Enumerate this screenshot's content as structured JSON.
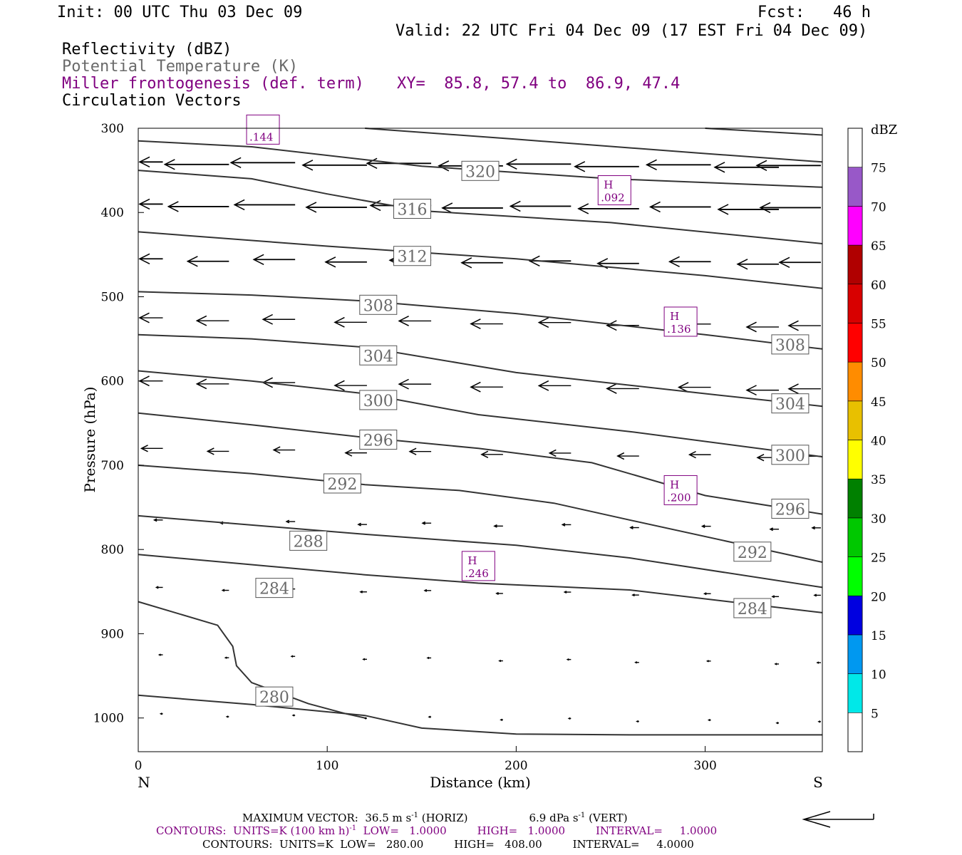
{
  "header": {
    "init": "Init: 00 UTC Thu 03 Dec 09",
    "fcst": "Fcst:   46 h",
    "valid": "Valid: 22 UTC Fri 04 Dec 09 (17 EST Fri 04 Dec 09)",
    "field1": "Reflectivity (dBZ)",
    "field2": "Potential Temperature (K)",
    "field3": "Miller frontogenesis (def. term)",
    "xy": "XY=  85.8, 57.4 to  86.9, 47.4",
    "field4": "Circulation Vectors"
  },
  "colors": {
    "purple": "#800080",
    "contour": "#333333",
    "theta_label_gray": "#6a6a6a"
  },
  "chart_data": {
    "type": "cross-section",
    "xlabel": "Distance (km)",
    "ylabel": "Pressure (hPa)",
    "xlim": [
      0,
      362
    ],
    "ylim": [
      1040,
      300
    ],
    "x_ticks": [
      0,
      100,
      200,
      300
    ],
    "y_ticks": [
      300,
      400,
      500,
      600,
      700,
      800,
      900,
      1000
    ],
    "left_end_label": "N",
    "right_end_label": "S",
    "theta_contours": [
      {
        "label": "280",
        "label_at": [
          72,
          975
        ],
        "points": [
          [
            0,
            862
          ],
          [
            42,
            890
          ],
          [
            50,
            915
          ],
          [
            52,
            938
          ],
          [
            60,
            958
          ],
          [
            90,
            983
          ],
          [
            110,
            995
          ],
          [
            120,
            1000
          ]
        ]
      },
      {
        "label": "",
        "label_at": null,
        "points": [
          [
            0,
            973
          ],
          [
            60,
            984
          ],
          [
            120,
            997
          ],
          [
            150,
            1012
          ],
          [
            200,
            1019
          ],
          [
            260,
            1020
          ],
          [
            362,
            1020
          ]
        ]
      },
      {
        "label": "284",
        "label_at": [
          72,
          846
        ],
        "points": [
          [
            0,
            806
          ],
          [
            60,
            818
          ],
          [
            120,
            830
          ],
          [
            180,
            840
          ],
          [
            260,
            848
          ],
          [
            362,
            875
          ]
        ]
      },
      {
        "label": "284",
        "label_at": [
          325,
          870
        ],
        "points": []
      },
      {
        "label": "288",
        "label_at": [
          90,
          790
        ],
        "points": [
          [
            0,
            760
          ],
          [
            60,
            771
          ],
          [
            120,
            782
          ],
          [
            200,
            795
          ],
          [
            260,
            810
          ],
          [
            362,
            845
          ]
        ]
      },
      {
        "label": "292",
        "label_at": [
          108,
          722
        ],
        "points": [
          [
            0,
            700
          ],
          [
            60,
            710
          ],
          [
            120,
            723
          ],
          [
            170,
            730
          ],
          [
            220,
            745
          ],
          [
            260,
            765
          ],
          [
            362,
            815
          ]
        ]
      },
      {
        "label": "292",
        "label_at": [
          325,
          803
        ],
        "points": []
      },
      {
        "label": "296",
        "label_at": [
          127,
          670
        ],
        "points": [
          [
            0,
            638
          ],
          [
            60,
            652
          ],
          [
            120,
            667
          ],
          [
            180,
            680
          ],
          [
            240,
            697
          ],
          [
            300,
            736
          ],
          [
            362,
            758
          ]
        ]
      },
      {
        "label": "296",
        "label_at": [
          345,
          752
        ],
        "points": []
      },
      {
        "label": "300",
        "label_at": [
          127,
          623
        ],
        "points": [
          [
            0,
            588
          ],
          [
            60,
            600
          ],
          [
            120,
            615
          ],
          [
            180,
            640
          ],
          [
            260,
            660
          ],
          [
            362,
            690
          ]
        ]
      },
      {
        "label": "300",
        "label_at": [
          345,
          688
        ],
        "points": []
      },
      {
        "label": "304",
        "label_at": [
          127,
          570
        ],
        "points": [
          [
            0,
            545
          ],
          [
            60,
            550
          ],
          [
            120,
            560
          ],
          [
            200,
            590
          ],
          [
            300,
            615
          ],
          [
            362,
            630
          ]
        ]
      },
      {
        "label": "304",
        "label_at": [
          345,
          627
        ],
        "points": []
      },
      {
        "label": "308",
        "label_at": [
          127,
          510
        ],
        "points": [
          [
            0,
            494
          ],
          [
            60,
            498
          ],
          [
            120,
            505
          ],
          [
            200,
            520
          ],
          [
            300,
            545
          ],
          [
            362,
            562
          ]
        ]
      },
      {
        "label": "308",
        "label_at": [
          345,
          557
        ],
        "points": []
      },
      {
        "label": "312",
        "label_at": [
          145,
          452
        ],
        "points": [
          [
            0,
            423
          ],
          [
            100,
            440
          ],
          [
            200,
            455
          ],
          [
            300,
            475
          ],
          [
            362,
            490
          ]
        ]
      },
      {
        "label": "316",
        "label_at": [
          145,
          396
        ],
        "points": [
          [
            0,
            350
          ],
          [
            60,
            360
          ],
          [
            100,
            378
          ],
          [
            150,
            398
          ],
          [
            250,
            412
          ],
          [
            362,
            437
          ]
        ]
      },
      {
        "label": "320",
        "label_at": [
          181,
          351
        ],
        "points": [
          [
            0,
            315
          ],
          [
            60,
            322
          ],
          [
            150,
            345
          ],
          [
            250,
            360
          ],
          [
            362,
            370
          ]
        ]
      },
      {
        "label": "",
        "label_at": null,
        "points": [
          [
            120,
            300
          ],
          [
            200,
            313
          ],
          [
            300,
            330
          ],
          [
            362,
            340
          ]
        ]
      },
      {
        "label": "",
        "label_at": null,
        "points": [
          [
            300,
            300
          ],
          [
            362,
            308
          ]
        ]
      }
    ],
    "frontogenesis_maxima": [
      {
        "letter": "",
        "value": ".144",
        "at": [
          66,
          302
        ]
      },
      {
        "letter": "H",
        "value": ".092",
        "at": [
          252,
          374
        ]
      },
      {
        "letter": "H",
        "value": ".136",
        "at": [
          287,
          530
        ]
      },
      {
        "letter": "H",
        "value": ".200",
        "at": [
          287,
          730
        ]
      },
      {
        "letter": "H",
        "value": ".246",
        "at": [
          180,
          820
        ]
      }
    ],
    "colorbar": {
      "unit": "dBZ",
      "levels": [
        5,
        10,
        15,
        20,
        25,
        30,
        35,
        40,
        45,
        50,
        55,
        60,
        65,
        70,
        75
      ],
      "colors": [
        "#00e8e8",
        "#0098f0",
        "#0000e0",
        "#00ff00",
        "#00c800",
        "#008000",
        "#ffff00",
        "#e8c000",
        "#ff8c00",
        "#ff0000",
        "#d80000",
        "#b00000",
        "#ff00ff",
        "#9858c8"
      ]
    },
    "vector_rows": [
      {
        "p": 340,
        "len": 0.9
      },
      {
        "p": 390,
        "len": 0.85
      },
      {
        "p": 455,
        "len": 0.58
      },
      {
        "p": 525,
        "len": 0.45
      },
      {
        "p": 600,
        "len": 0.45
      },
      {
        "p": 680,
        "len": 0.3
      },
      {
        "p": 765,
        "len": 0.12
      },
      {
        "p": 845,
        "len": 0.09
      },
      {
        "p": 925,
        "len": 0.05
      },
      {
        "p": 995,
        "len": 0.03
      }
    ],
    "vector_x": [
      10,
      45,
      80,
      118,
      152,
      190,
      226,
      262,
      300,
      336,
      362
    ]
  },
  "footer": {
    "max_vector": "MAXIMUM VECTOR:  36.5 m s",
    "max_vector_sup": "-1",
    "max_vector_horiz": " (HORIZ)",
    "max_vector_vert": "6.9 dPa s",
    "max_vector_vert_sup": "-1",
    "max_vector_vert_tail": " (VERT)",
    "contours1_a": "CONTOURS:  UNITS=K (100 km h)",
    "contours1_sup": "-1",
    "contours1_b": "  LOW=   1.0000         HIGH=   1.0000         INTERVAL=     1.0000",
    "contours2": "CONTOURS:  UNITS=K  LOW=   280.00         HIGH=   408.00         INTERVAL=     4.0000"
  }
}
